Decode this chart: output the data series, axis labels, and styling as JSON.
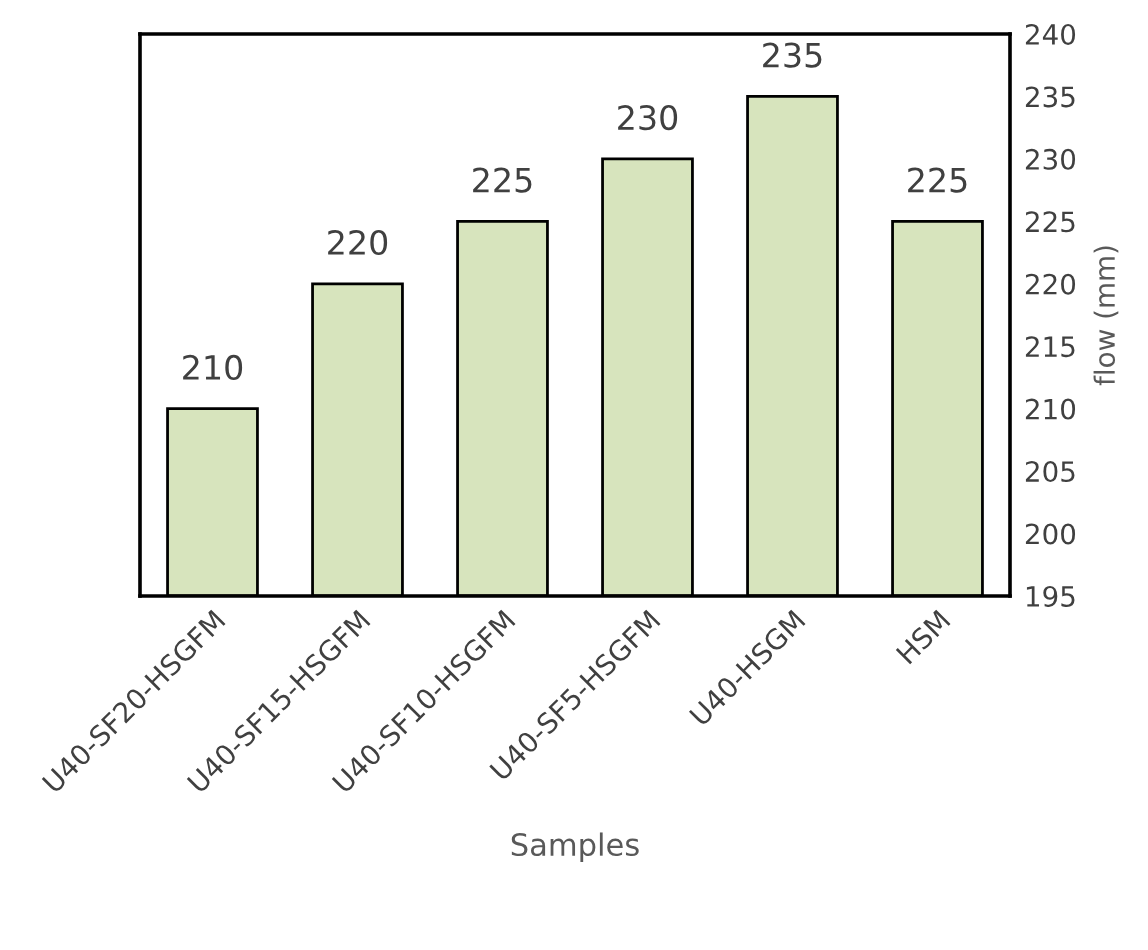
{
  "chart_data": {
    "type": "bar",
    "xlabel": "Samples",
    "ylabel": "flow (mm)",
    "categories": [
      "U40-SF20-HSGFM",
      "U40-SF15-HSGFM",
      "U40-SF10-HSGFM",
      "U40-SF5-HSGFM",
      "U40-HSGM",
      "HSM"
    ],
    "values": [
      210,
      220,
      225,
      230,
      235,
      225
    ],
    "color": "#d7e4bd",
    "ylim": [
      195,
      240
    ],
    "yticks": [
      195,
      200,
      205,
      210,
      215,
      220,
      225,
      230,
      235,
      240
    ],
    "grid": false,
    "data_labels": true
  }
}
